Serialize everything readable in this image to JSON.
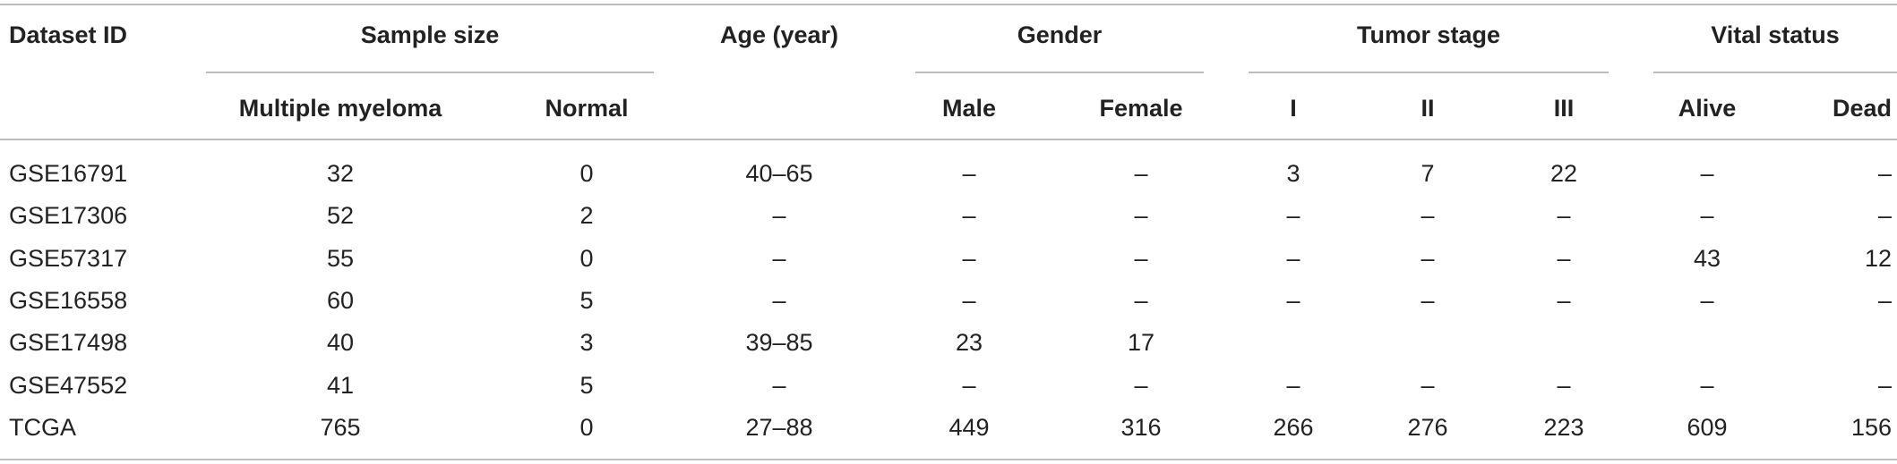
{
  "table": {
    "header": {
      "dataset_id": "Dataset ID",
      "sample_size": "Sample size",
      "age": "Age (year)",
      "gender": "Gender",
      "tumor_stage": "Tumor stage",
      "vital_status": "Vital status",
      "multiple_myeloma": "Multiple myeloma",
      "normal": "Normal",
      "male": "Male",
      "female": "Female",
      "stage_1": "I",
      "stage_2": "II",
      "stage_3": "III",
      "alive": "Alive",
      "dead": "Dead"
    },
    "rows": [
      [
        "GSE16791",
        "32",
        "0",
        "40–65",
        "–",
        "–",
        "3",
        "7",
        "22",
        "–",
        "–"
      ],
      [
        "GSE17306",
        "52",
        "2",
        "–",
        "–",
        "–",
        "–",
        "–",
        "–",
        "–",
        "–"
      ],
      [
        "GSE57317",
        "55",
        "0",
        "–",
        "–",
        "–",
        "–",
        "–",
        "–",
        "43",
        "12"
      ],
      [
        "GSE16558",
        "60",
        "5",
        "–",
        "–",
        "–",
        "–",
        "–",
        "–",
        "–",
        "–"
      ],
      [
        "GSE17498",
        "40",
        "3",
        "39–85",
        "23",
        "17",
        "",
        "",
        "",
        "",
        ""
      ],
      [
        "GSE47552",
        "41",
        "5",
        "–",
        "–",
        "–",
        "–",
        "–",
        "–",
        "–",
        "–"
      ],
      [
        "TCGA",
        "765",
        "0",
        "27–88",
        "449",
        "316",
        "266",
        "276",
        "223",
        "609",
        "156"
      ]
    ]
  }
}
